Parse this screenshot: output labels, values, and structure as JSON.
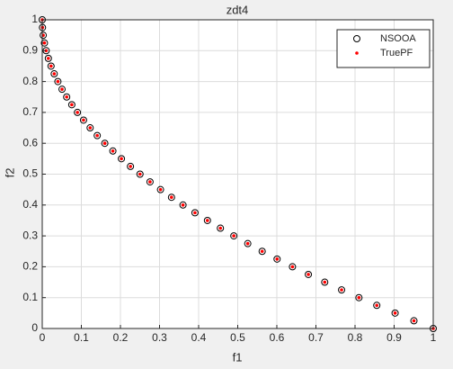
{
  "chart_data": {
    "type": "scatter",
    "title": "zdt4",
    "x_label": "f1",
    "y_label": "f2",
    "xlim": [
      0,
      1
    ],
    "ylim": [
      0,
      1
    ],
    "xticks": [
      0,
      0.1,
      0.2,
      0.3,
      0.4,
      0.5,
      0.6,
      0.7,
      0.8,
      0.9,
      1
    ],
    "yticks": [
      0,
      0.1,
      0.2,
      0.3,
      0.4,
      0.5,
      0.6,
      0.7,
      0.8,
      0.9,
      1
    ],
    "grid": true,
    "legend_position": "northeast",
    "series": [
      {
        "name": "NSOOA",
        "color": "#000000",
        "marker": "circle",
        "x": [
          0,
          0.000625,
          0.0025,
          0.005625,
          0.01,
          0.015625,
          0.0225,
          0.030625,
          0.04,
          0.050625,
          0.0625,
          0.075625,
          0.09,
          0.105625,
          0.1225,
          0.140625,
          0.16,
          0.180625,
          0.2025,
          0.225625,
          0.25,
          0.275625,
          0.3025,
          0.330625,
          0.36,
          0.390625,
          0.4225,
          0.455625,
          0.49,
          0.525625,
          0.5625,
          0.600625,
          0.64,
          0.680625,
          0.7225,
          0.765625,
          0.81,
          0.855625,
          0.9025,
          0.950625,
          1
        ],
        "values": [
          1,
          0.975,
          0.95,
          0.925,
          0.9,
          0.875,
          0.85,
          0.825,
          0.8,
          0.775,
          0.75,
          0.725,
          0.7,
          0.675,
          0.65,
          0.625,
          0.6,
          0.575,
          0.55,
          0.525,
          0.5,
          0.475,
          0.45,
          0.425,
          0.4,
          0.375,
          0.35,
          0.325,
          0.3,
          0.275,
          0.25,
          0.225,
          0.2,
          0.175,
          0.15,
          0.125,
          0.1,
          0.075,
          0.05,
          0.025,
          0
        ]
      },
      {
        "name": "TruePF",
        "color": "#ff0000",
        "marker": "dot",
        "x": [
          0,
          0.000625,
          0.0025,
          0.005625,
          0.01,
          0.015625,
          0.0225,
          0.030625,
          0.04,
          0.050625,
          0.0625,
          0.075625,
          0.09,
          0.105625,
          0.1225,
          0.140625,
          0.16,
          0.180625,
          0.2025,
          0.225625,
          0.25,
          0.275625,
          0.3025,
          0.330625,
          0.36,
          0.390625,
          0.4225,
          0.455625,
          0.49,
          0.525625,
          0.5625,
          0.600625,
          0.64,
          0.680625,
          0.7225,
          0.765625,
          0.81,
          0.855625,
          0.9025,
          0.950625,
          1
        ],
        "values": [
          1,
          0.975,
          0.95,
          0.925,
          0.9,
          0.875,
          0.85,
          0.825,
          0.8,
          0.775,
          0.75,
          0.725,
          0.7,
          0.675,
          0.65,
          0.625,
          0.6,
          0.575,
          0.55,
          0.525,
          0.5,
          0.475,
          0.45,
          0.425,
          0.4,
          0.375,
          0.35,
          0.325,
          0.3,
          0.275,
          0.25,
          0.225,
          0.2,
          0.175,
          0.15,
          0.125,
          0.1,
          0.075,
          0.05,
          0.025,
          0
        ]
      }
    ]
  }
}
